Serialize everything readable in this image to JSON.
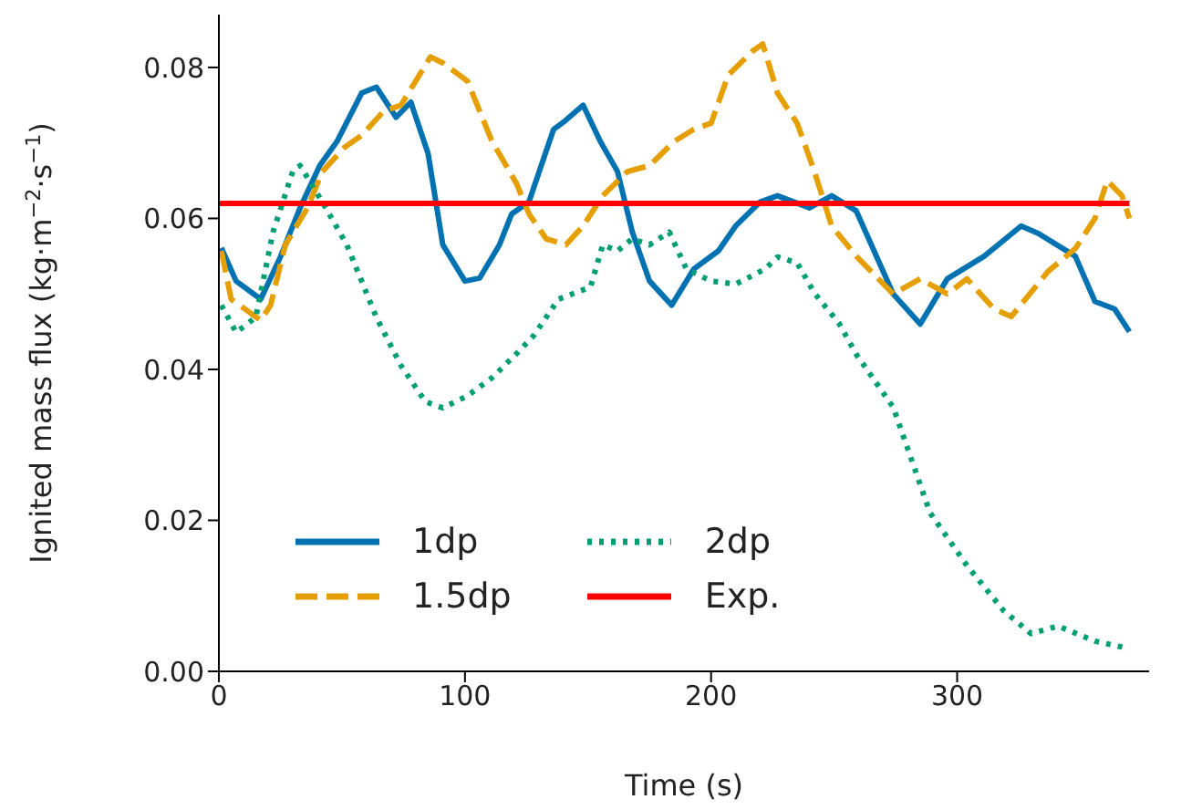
{
  "chart_data": {
    "type": "line",
    "xlabel": "Time (s)",
    "ylabel": "Ignited mass flux (kg·m$^{−2}$·s$^{−1}$)",
    "xlim": [
      0,
      378
    ],
    "xticks": [
      0,
      100,
      200,
      300
    ],
    "ylim": [
      0,
      0.087
    ],
    "yticks": [
      {
        "value": 0,
        "label": "0.00"
      },
      0.02,
      0.04,
      0.06,
      0.08
    ],
    "legend": "bottom",
    "marker": "none",
    "series": [
      {
        "name": "1dp",
        "color": "#0072b2",
        "line_style": "solid",
        "x": [
          1,
          7,
          17,
          25,
          33,
          41,
          48,
          58,
          64,
          72,
          78,
          85,
          91,
          100,
          106,
          114,
          119,
          126,
          136,
          141,
          148,
          155,
          162,
          168,
          175,
          184,
          193,
          203,
          210,
          220,
          227,
          240,
          249,
          259,
          274,
          285,
          296,
          311,
          326,
          333,
          348,
          356,
          364,
          370
        ],
        "values": [
          0.0561,
          0.0517,
          0.0493,
          0.0549,
          0.0614,
          0.067,
          0.0702,
          0.0766,
          0.0774,
          0.0734,
          0.0754,
          0.0686,
          0.0565,
          0.0517,
          0.0521,
          0.0565,
          0.0606,
          0.0622,
          0.0718,
          0.073,
          0.075,
          0.0702,
          0.0662,
          0.0582,
          0.0517,
          0.0485,
          0.0533,
          0.0557,
          0.059,
          0.0622,
          0.063,
          0.0614,
          0.063,
          0.061,
          0.05,
          0.046,
          0.052,
          0.055,
          0.059,
          0.058,
          0.055,
          0.049,
          0.048,
          0.045
        ]
      },
      {
        "name": "1.5dp",
        "color": "#e69f00",
        "line_style": "dashed",
        "x": [
          1,
          5,
          17,
          21,
          27,
          36,
          42,
          51,
          58,
          67,
          74,
          86,
          91,
          101,
          111,
          121,
          126,
          133,
          141,
          148,
          156,
          166,
          175,
          185,
          193,
          200,
          207,
          217,
          221,
          227,
          235,
          242,
          249,
          259,
          274,
          285,
          296,
          304,
          315,
          322,
          337,
          348,
          356,
          361,
          367,
          370
        ],
        "values": [
          0.0557,
          0.0493,
          0.0465,
          0.0485,
          0.0565,
          0.0614,
          0.0662,
          0.0694,
          0.071,
          0.0742,
          0.075,
          0.0814,
          0.0806,
          0.0782,
          0.0702,
          0.0646,
          0.0606,
          0.0573,
          0.0565,
          0.059,
          0.063,
          0.0662,
          0.067,
          0.0702,
          0.0718,
          0.0726,
          0.079,
          0.0822,
          0.0831,
          0.0766,
          0.0726,
          0.0662,
          0.059,
          0.055,
          0.05,
          0.052,
          0.05,
          0.052,
          0.048,
          0.047,
          0.053,
          0.056,
          0.06,
          0.065,
          0.063,
          0.06
        ]
      },
      {
        "name": "2dp",
        "color": "#009e73",
        "line_style": "dotted",
        "x": [
          1,
          7,
          15,
          22,
          30,
          33,
          42,
          52,
          64,
          74,
          84,
          91,
          101,
          111,
          121,
          128,
          138,
          151,
          156,
          162,
          168,
          175,
          183,
          190,
          200,
          210,
          222,
          227,
          235,
          242,
          252,
          259,
          274,
          289,
          304,
          319,
          330,
          341,
          356,
          370
        ],
        "values": [
          0.0485,
          0.0449,
          0.0469,
          0.0582,
          0.0662,
          0.067,
          0.0622,
          0.0565,
          0.0469,
          0.0405,
          0.0357,
          0.0349,
          0.0365,
          0.0389,
          0.0421,
          0.0445,
          0.0493,
          0.0509,
          0.0565,
          0.0557,
          0.0573,
          0.0565,
          0.0582,
          0.0533,
          0.0517,
          0.0513,
          0.0533,
          0.0549,
          0.0541,
          0.0501,
          0.0461,
          0.042,
          0.035,
          0.021,
          0.014,
          0.008,
          0.005,
          0.006,
          0.004,
          0.003
        ]
      },
      {
        "name": "Exp.",
        "color": "#ff0000",
        "line_style": "solid",
        "x": [
          0,
          370
        ],
        "values": [
          0.062,
          0.062
        ]
      }
    ]
  }
}
